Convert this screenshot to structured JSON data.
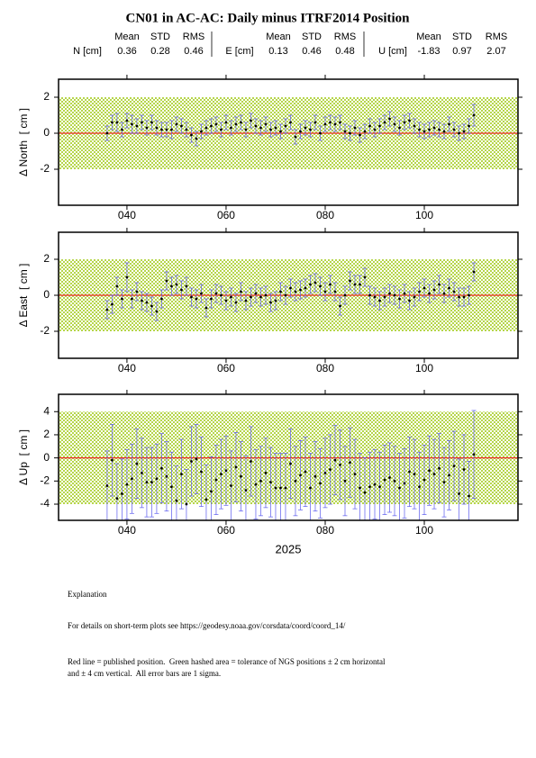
{
  "title": "CN01 in AC-AC: Daily minus ITRF2014 Position",
  "statistics": [
    {
      "label": "N [cm]",
      "headers": [
        "Mean",
        "STD",
        "RMS"
      ],
      "mean": 0.36,
      "std": 0.28,
      "rms": 0.46
    },
    {
      "label": "E [cm]",
      "headers": [
        "Mean",
        "STD",
        "RMS"
      ],
      "mean": 0.13,
      "std": 0.46,
      "rms": 0.48
    },
    {
      "label": "U [cm]",
      "headers": [
        "Mean",
        "STD",
        "RMS"
      ],
      "mean": -1.83,
      "std": 0.97,
      "rms": 2.07
    }
  ],
  "chart_data": [
    {
      "type": "errorbar",
      "ylabel": "Δ North  [ cm ]",
      "x": [
        36,
        37,
        38,
        39,
        40,
        41,
        42,
        43,
        44,
        45,
        46,
        47,
        48,
        49,
        50,
        51,
        52,
        53,
        54,
        55,
        56,
        57,
        58,
        59,
        60,
        61,
        62,
        63,
        64,
        65,
        66,
        67,
        68,
        69,
        70,
        71,
        72,
        73,
        74,
        75,
        76,
        77,
        78,
        79,
        80,
        81,
        82,
        83,
        84,
        85,
        86,
        87,
        88,
        89,
        90,
        91,
        92,
        93,
        94,
        95,
        96,
        97,
        98,
        99,
        100,
        101,
        102,
        103,
        104,
        105,
        106,
        107,
        108,
        109,
        110
      ],
      "values": [
        0.0,
        0.6,
        0.6,
        0.2,
        0.7,
        0.5,
        0.4,
        0.6,
        0.3,
        0.6,
        0.3,
        0.2,
        0.2,
        0.2,
        0.5,
        0.4,
        0.2,
        -0.1,
        -0.3,
        0.1,
        0.3,
        0.4,
        0.5,
        0.2,
        0.6,
        0.3,
        0.5,
        0.6,
        0.2,
        0.7,
        0.4,
        0.3,
        0.5,
        0.2,
        0.3,
        0.1,
        0.4,
        0.6,
        -0.2,
        0.1,
        0.3,
        0.2,
        0.6,
        0.0,
        0.5,
        0.6,
        0.5,
        0.6,
        0.1,
        0.0,
        0.3,
        -0.1,
        0.1,
        0.4,
        0.2,
        0.4,
        0.6,
        0.8,
        0.5,
        0.3,
        0.6,
        0.7,
        0.4,
        0.2,
        0.1,
        0.2,
        0.3,
        0.2,
        0.1,
        0.5,
        0.2,
        0.0,
        0.1,
        0.4,
        1.0
      ],
      "errors": [
        0.4,
        0.4,
        0.5,
        0.4,
        0.4,
        0.5,
        0.4,
        0.4,
        0.4,
        0.4,
        0.4,
        0.4,
        0.4,
        0.5,
        0.4,
        0.4,
        0.4,
        0.4,
        0.4,
        0.4,
        0.4,
        0.4,
        0.4,
        0.4,
        0.4,
        0.4,
        0.4,
        0.4,
        0.4,
        0.4,
        0.4,
        0.4,
        0.4,
        0.4,
        0.4,
        0.4,
        0.4,
        0.4,
        0.4,
        0.4,
        0.4,
        0.4,
        0.4,
        0.4,
        0.4,
        0.4,
        0.4,
        0.4,
        0.4,
        0.4,
        0.4,
        0.4,
        0.4,
        0.4,
        0.4,
        0.4,
        0.4,
        0.4,
        0.4,
        0.4,
        0.4,
        0.4,
        0.4,
        0.4,
        0.4,
        0.4,
        0.4,
        0.4,
        0.4,
        0.4,
        0.4,
        0.4,
        0.4,
        0.4,
        0.6
      ],
      "color": "#000000",
      "error_color": "#5a5aee",
      "reference": 0,
      "reference_color": "#e8291c",
      "tolerance": 2,
      "tolerance_color": "#b6d64a",
      "xlim": [
        26.2,
        118.9
      ],
      "xticks": [
        {
          "value": 40,
          "label": "040"
        },
        {
          "value": 60,
          "label": "060"
        },
        {
          "value": 80,
          "label": "080"
        },
        {
          "value": 100,
          "label": "100"
        }
      ],
      "ylim": [
        -4,
        3
      ],
      "yticks": [
        -2,
        0,
        2
      ]
    },
    {
      "type": "errorbar",
      "ylabel": "Δ East  [ cm ]",
      "x": [
        36,
        37,
        38,
        39,
        40,
        41,
        42,
        43,
        44,
        45,
        46,
        47,
        48,
        49,
        50,
        51,
        52,
        53,
        54,
        55,
        56,
        57,
        58,
        59,
        60,
        61,
        62,
        63,
        64,
        65,
        66,
        67,
        68,
        69,
        70,
        71,
        72,
        73,
        74,
        75,
        76,
        77,
        78,
        79,
        80,
        81,
        82,
        83,
        84,
        85,
        86,
        87,
        88,
        89,
        90,
        91,
        92,
        93,
        94,
        95,
        96,
        97,
        98,
        99,
        100,
        101,
        102,
        103,
        104,
        105,
        106,
        107,
        108,
        109,
        110
      ],
      "values": [
        -0.8,
        -0.5,
        0.5,
        -0.2,
        1.0,
        -0.2,
        0.2,
        -0.3,
        -0.4,
        -0.6,
        -0.9,
        -0.2,
        0.8,
        0.5,
        0.6,
        0.3,
        0.5,
        -0.1,
        -0.2,
        0.1,
        -0.7,
        -0.2,
        0.1,
        0.0,
        -0.3,
        -0.1,
        -0.4,
        0.2,
        -0.3,
        -0.1,
        0.1,
        -0.1,
        0.0,
        -0.4,
        -0.3,
        0.2,
        0.0,
        0.4,
        0.2,
        0.3,
        0.4,
        0.6,
        0.7,
        0.5,
        0.2,
        0.6,
        0.2,
        -0.6,
        0.0,
        0.8,
        0.6,
        0.6,
        1.0,
        0.0,
        -0.1,
        -0.3,
        -0.1,
        0.1,
        0.0,
        -0.2,
        0.1,
        -0.3,
        -0.1,
        0.2,
        0.4,
        0.1,
        0.3,
        0.6,
        0.1,
        0.4,
        0.2,
        -0.1,
        -0.1,
        0.0,
        1.3
      ],
      "errors": [
        0.5,
        0.5,
        0.5,
        0.5,
        0.8,
        0.5,
        0.5,
        0.5,
        0.5,
        0.5,
        0.5,
        0.5,
        0.5,
        0.5,
        0.5,
        0.5,
        0.5,
        0.5,
        0.5,
        0.5,
        0.5,
        0.5,
        0.5,
        0.5,
        0.5,
        0.5,
        0.5,
        0.5,
        0.5,
        0.5,
        0.5,
        0.5,
        0.5,
        0.5,
        0.5,
        0.5,
        0.5,
        0.5,
        0.5,
        0.5,
        0.5,
        0.5,
        0.5,
        0.5,
        0.5,
        0.5,
        0.5,
        0.5,
        0.5,
        0.5,
        0.5,
        0.5,
        0.5,
        0.5,
        0.5,
        0.5,
        0.5,
        0.5,
        0.5,
        0.5,
        0.5,
        0.5,
        0.5,
        0.5,
        0.5,
        0.5,
        0.5,
        0.5,
        0.5,
        0.5,
        0.5,
        0.5,
        0.5,
        0.5,
        0.5
      ],
      "color": "#000000",
      "error_color": "#5a5aee",
      "reference": 0,
      "reference_color": "#e8291c",
      "tolerance": 2,
      "tolerance_color": "#b6d64a",
      "xlim": [
        26.2,
        118.9
      ],
      "xticks": [
        {
          "value": 40,
          "label": "040"
        },
        {
          "value": 60,
          "label": "060"
        },
        {
          "value": 80,
          "label": "080"
        },
        {
          "value": 100,
          "label": "100"
        }
      ],
      "ylim": [
        -3.5,
        3.5
      ],
      "yticks": [
        -2,
        0,
        2
      ]
    },
    {
      "type": "errorbar",
      "ylabel": "Δ Up  [ cm ]",
      "xlabel": "2025",
      "x": [
        36,
        37,
        38,
        39,
        40,
        41,
        42,
        43,
        44,
        45,
        46,
        47,
        48,
        49,
        50,
        51,
        52,
        53,
        54,
        55,
        56,
        57,
        58,
        59,
        60,
        61,
        62,
        63,
        64,
        65,
        66,
        67,
        68,
        69,
        70,
        71,
        72,
        73,
        74,
        75,
        76,
        77,
        78,
        79,
        80,
        81,
        82,
        83,
        84,
        85,
        86,
        87,
        88,
        89,
        90,
        91,
        92,
        93,
        94,
        95,
        96,
        97,
        98,
        99,
        100,
        101,
        102,
        103,
        104,
        105,
        106,
        107,
        108,
        109,
        110
      ],
      "values": [
        -2.4,
        -0.2,
        -3.5,
        -3.1,
        -2.3,
        -1.8,
        -0.5,
        -1.3,
        -2.1,
        -2.1,
        -1.8,
        -0.9,
        -1.6,
        -2.5,
        -3.7,
        -1.4,
        -4.0,
        -0.3,
        -0.1,
        -1.2,
        -3.6,
        -2.9,
        -1.9,
        -1.4,
        -1.1,
        -2.4,
        -0.8,
        -1.6,
        -2.8,
        -0.3,
        -2.3,
        -2.0,
        -1.3,
        -2.1,
        -2.6,
        -2.6,
        -2.6,
        -0.5,
        -2.0,
        -1.5,
        -1.2,
        -2.6,
        -1.6,
        -2.2,
        -1.3,
        -1.0,
        -0.2,
        -0.6,
        -2.0,
        -0.4,
        -1.4,
        -2.6,
        -3.0,
        -2.5,
        -2.3,
        -2.5,
        -1.9,
        -1.7,
        -2.0,
        -2.6,
        -2.2,
        -1.2,
        -1.4,
        -2.5,
        -1.9,
        -1.1,
        -1.4,
        -0.9,
        -2.1,
        -1.5,
        -0.7,
        -3.1,
        -1.0,
        -3.3,
        0.3
      ],
      "errors": [
        3.0,
        3.1,
        3.0,
        3.0,
        3.0,
        3.0,
        3.0,
        3.0,
        3.0,
        3.0,
        3.0,
        3.0,
        3.0,
        3.0,
        3.0,
        3.0,
        3.0,
        3.0,
        3.0,
        3.0,
        3.0,
        3.0,
        3.0,
        3.0,
        3.0,
        3.0,
        3.0,
        3.0,
        3.0,
        3.0,
        3.0,
        3.0,
        3.0,
        3.0,
        3.0,
        3.0,
        3.0,
        3.0,
        3.0,
        3.0,
        3.0,
        3.0,
        3.0,
        3.0,
        3.0,
        3.0,
        3.0,
        3.0,
        3.0,
        3.0,
        3.0,
        3.0,
        3.0,
        3.0,
        3.0,
        3.0,
        3.0,
        3.0,
        3.0,
        3.0,
        3.0,
        3.0,
        3.0,
        3.0,
        3.0,
        3.0,
        3.0,
        3.0,
        3.0,
        3.0,
        3.0,
        3.0,
        3.0,
        3.0,
        3.8
      ],
      "color": "#000000",
      "error_color": "#5a5aee",
      "reference": 0,
      "reference_color": "#e8291c",
      "tolerance": 4,
      "tolerance_color": "#b6d64a",
      "xlim": [
        26.2,
        118.9
      ],
      "xticks": [
        {
          "value": 40,
          "label": "040"
        },
        {
          "value": 60,
          "label": "060"
        },
        {
          "value": 80,
          "label": "080"
        },
        {
          "value": 100,
          "label": "100"
        }
      ],
      "ylim": [
        -5.4,
        5.5
      ],
      "yticks": [
        -4,
        -2,
        0,
        2,
        4
      ]
    }
  ],
  "explanation": {
    "heading": "Explanation",
    "details": "For details on short-term plots see https://geodesy.noaa.gov/corsdata/coord/coord_14/",
    "notes": [
      "Red line = published position.  Green hashed area = tolerance of NGS positions ± 2 cm horizontal",
      "and ± 4 cm vertical.  All error bars are 1 sigma."
    ]
  }
}
